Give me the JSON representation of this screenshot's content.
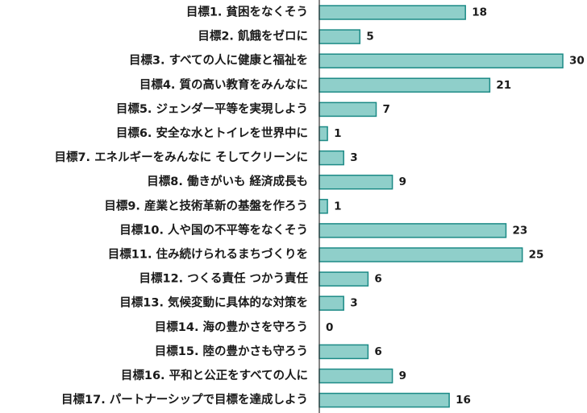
{
  "colors": {
    "bar_fill": "#8fcfca",
    "bar_stroke": "#1c8a86",
    "axis": "#333333",
    "text": "#1a1a1a"
  },
  "chart_data": {
    "type": "bar",
    "orientation": "horizontal",
    "title": "",
    "xlabel": "",
    "ylabel": "",
    "xlim": [
      0,
      30
    ],
    "grid": false,
    "categories": [
      "目標1. 貧困をなくそう",
      "目標2. 飢餓をゼロに",
      "目標3. すべての人に健康と福祉を",
      "目標4. 質の高い教育をみんなに",
      "目標5. ジェンダー平等を実現しよう",
      "目標6. 安全な水とトイレを世界中に",
      "目標7. エネルギーをみんなに そしてクリーンに",
      "目標8. 働きがいも 経済成長も",
      "目標9. 産業と技術革新の基盤を作ろう",
      "目標10. 人や国の不平等をなくそう",
      "目標11. 住み続けられるまちづくりを",
      "目標12. つくる責任 つかう責任",
      "目標13. 気候変動に具体的な対策を",
      "目標14. 海の豊かさを守ろう",
      "目標15. 陸の豊かさも守ろう",
      "目標16. 平和と公正をすべての人に",
      "目標17. パートナーシップで目標を達成しよう"
    ],
    "values": [
      18,
      5,
      30,
      21,
      7,
      1,
      3,
      9,
      1,
      23,
      25,
      6,
      3,
      0,
      6,
      9,
      16
    ]
  }
}
